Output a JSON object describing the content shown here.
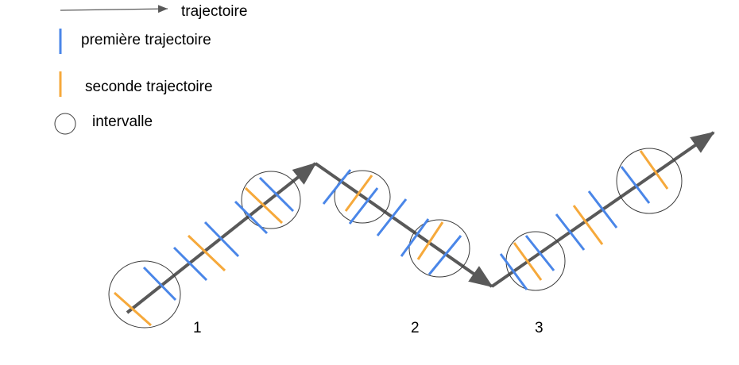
{
  "colors": {
    "first": "#4a86e8",
    "second": "#f6a93b",
    "path": "#595959",
    "circle": "#3c3c3c",
    "text": "#000000"
  },
  "legend": {
    "trajectory": "trajectoire",
    "first_trajectory": "première trajectoire",
    "second_trajectory": "seconde trajectoire",
    "interval": "intervalle"
  },
  "labels": {
    "interval_1": "1",
    "interval_2": "2",
    "interval_3": "3"
  }
}
